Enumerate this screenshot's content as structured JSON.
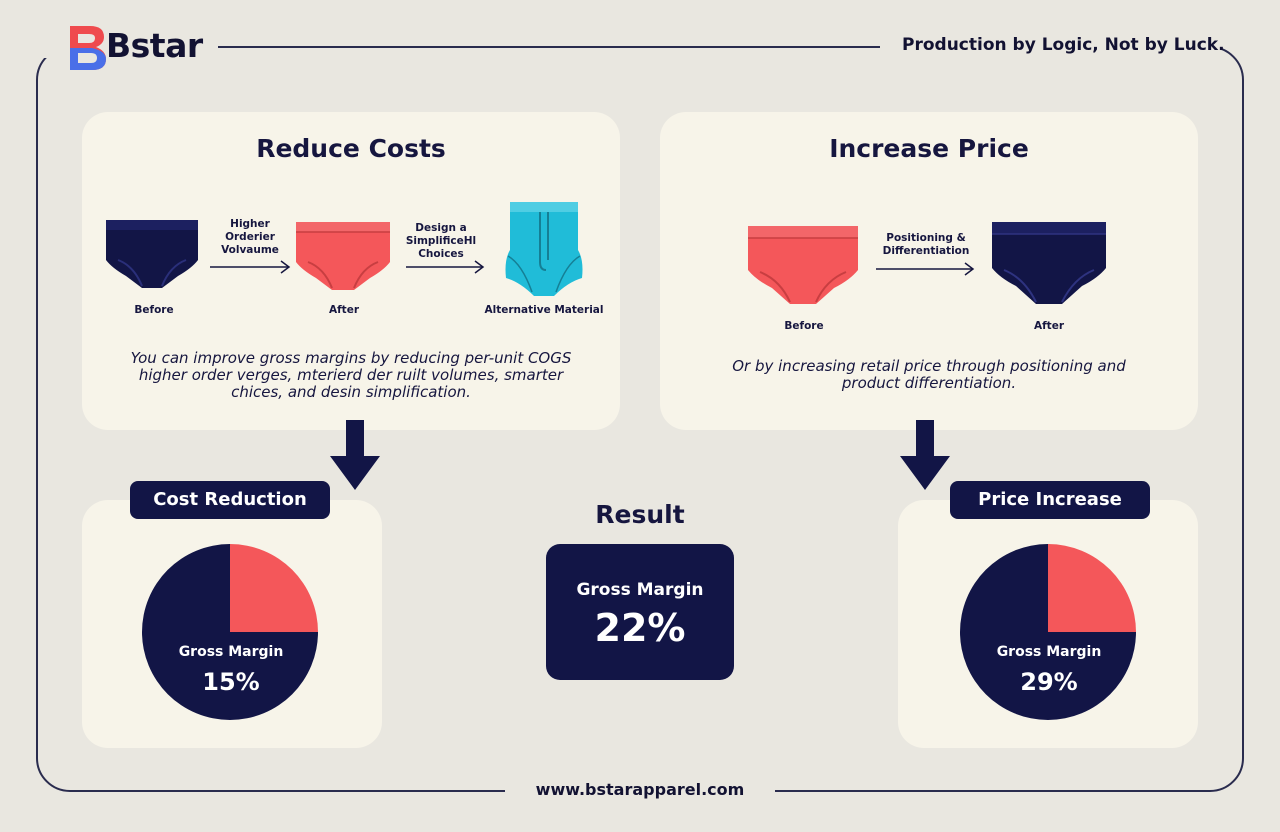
{
  "brand": {
    "name": "Bstar",
    "tagline": "Production by Logic, Not by Luck."
  },
  "reduce_costs": {
    "title": "Reduce Costs",
    "items": [
      {
        "label": "Before"
      },
      {
        "label": "After"
      },
      {
        "label": "Alternative Material"
      }
    ],
    "arrows": [
      {
        "label_lines": [
          "Higher",
          "Orderier",
          "Volvaume"
        ]
      },
      {
        "label_lines": [
          "Design a",
          "SimplificeHl",
          "Choices"
        ]
      }
    ],
    "description_lines": [
      "You can improve gross margins by reducing per-unit COGS",
      "higher order verges, mterierd der ruilt volumes, smarter",
      "chices, and desin simplification."
    ]
  },
  "increase_price": {
    "title": "Increase Price",
    "items": [
      {
        "label": "Before"
      },
      {
        "label": "After"
      }
    ],
    "arrow": {
      "label_lines": [
        "Positioning &",
        "Differentiation"
      ]
    },
    "description_lines": [
      "Or by increasing retail price through positioning and",
      "product differentiation."
    ]
  },
  "cost_reduction": {
    "title": "Cost Reduction",
    "metric_label": "Gross Margin",
    "metric_value": "15%"
  },
  "result": {
    "title": "Result",
    "metric_label": "Gross Margin",
    "metric_value": "22%"
  },
  "price_increase": {
    "title": "Price Increase",
    "metric_label": "Gross Margin",
    "metric_value": "29%"
  },
  "chart_data": [
    {
      "type": "pie",
      "title": "Cost Reduction",
      "slices": [
        {
          "value": 25,
          "color": "#f4575a"
        },
        {
          "value": 75,
          "color": "#121546"
        }
      ]
    },
    {
      "type": "pie",
      "title": "Price Increase",
      "slices": [
        {
          "value": 25,
          "color": "#f4575a"
        },
        {
          "value": 75,
          "color": "#121546"
        }
      ]
    }
  ],
  "colors": {
    "navy": "#121546",
    "coral": "#f4575a",
    "cyan": "#20bcd8",
    "card": "#f7f4e9",
    "background": "#e9e7e0"
  },
  "footer": {
    "url": "www.bstarapparel.com"
  }
}
